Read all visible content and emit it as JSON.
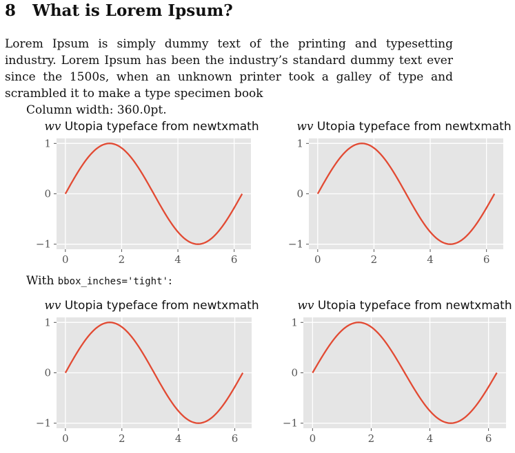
{
  "section": {
    "number": "8",
    "title": "What is Lorem Ipsum?"
  },
  "paragraph": "Lorem Ipsum is simply dummy text of the printing and typesetting industry. Lorem Ipsum has been the industry’s standard dummy text ever since the 1500s, when an unknown printer took a galley of type and scrambled it to make a type specimen book",
  "column_width": "Column width: 360.0pt.",
  "bbox_line": {
    "prefix": "With ",
    "code": "bbox_inches='tight'",
    "suffix": ":"
  },
  "colors": {
    "line": "#E24A33",
    "panel": "#E5E5E5",
    "grid": "#FFFFFF"
  },
  "chart_data": [
    {
      "type": "line",
      "title_math": "wv",
      "title": "Utopia typeface from newtxmath",
      "x_ticks": [
        "0",
        "2",
        "4",
        "6"
      ],
      "y_ticks": [
        "−1",
        "0",
        "1"
      ],
      "grid": true,
      "series": [
        {
          "function": "sin(x)",
          "x_range": [
            0,
            6.283
          ]
        }
      ]
    },
    {
      "type": "line",
      "title_math": "wv",
      "title": "Utopia typeface from newtxmath",
      "x_ticks": [
        "0",
        "2",
        "4",
        "6"
      ],
      "y_ticks": [
        "−1",
        "0",
        "1"
      ],
      "grid": true,
      "series": [
        {
          "function": "sin(x)",
          "x_range": [
            0,
            6.283
          ]
        }
      ]
    },
    {
      "type": "line",
      "title_math": "wv",
      "title": "Utopia typeface from newtxmath",
      "x_ticks": [
        "0",
        "2",
        "4",
        "6"
      ],
      "y_ticks": [
        "−1",
        "0",
        "1"
      ],
      "grid": true,
      "series": [
        {
          "function": "sin(x)",
          "x_range": [
            0,
            6.283
          ]
        }
      ]
    },
    {
      "type": "line",
      "title_math": "wv",
      "title": "Utopia typeface from newtxmath",
      "x_ticks": [
        "0",
        "2",
        "4",
        "6"
      ],
      "y_ticks": [
        "−1",
        "0",
        "1"
      ],
      "grid": true,
      "series": [
        {
          "function": "sin(x)",
          "x_range": [
            0,
            6.283
          ]
        }
      ]
    }
  ]
}
